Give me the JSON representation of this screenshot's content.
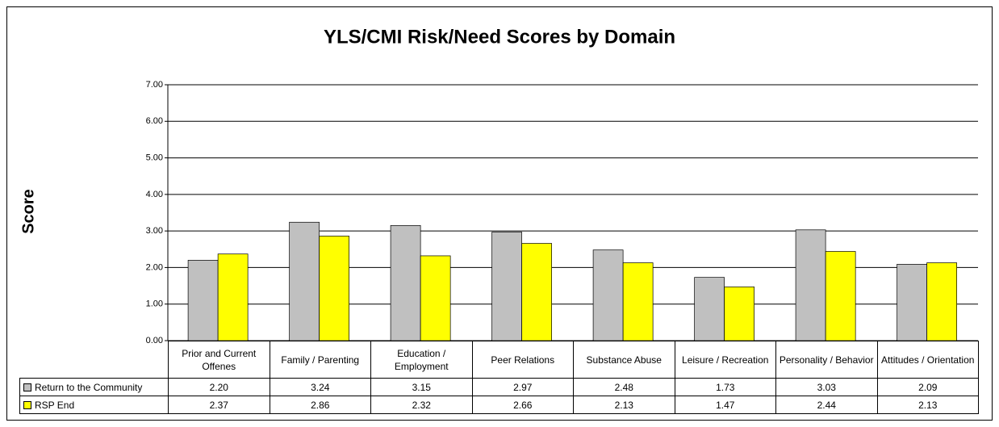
{
  "chart_data": {
    "type": "bar",
    "title": "YLS/CMI Risk/Need Scores by Domain",
    "y_label": "Score",
    "categories": [
      "Prior and Current Offenes",
      "Family / Parenting",
      "Education / Employment",
      "Peer Relations",
      "Substance Abuse",
      "Leisure / Recreation",
      "Personality / Behavior",
      "Attitudes / Orientation"
    ],
    "series": [
      {
        "name": "Return to the Community",
        "color": "#c0c0c0",
        "values": [
          2.2,
          3.24,
          3.15,
          2.97,
          2.48,
          1.73,
          3.03,
          2.09
        ],
        "value_labels": [
          "2.20",
          "3.24",
          "3.15",
          "2.97",
          "2.48",
          "1.73",
          "3.03",
          "2.09"
        ]
      },
      {
        "name": "RSP End",
        "color": "#ffff00",
        "values": [
          2.37,
          2.86,
          2.32,
          2.66,
          2.13,
          1.47,
          2.44,
          2.13
        ],
        "value_labels": [
          "2.37",
          "2.86",
          "2.32",
          "2.66",
          "2.13",
          "1.47",
          "2.44",
          "2.13"
        ]
      }
    ],
    "ylim": [
      0,
      7
    ],
    "yticks": [
      {
        "value": 0,
        "label": "0.00"
      },
      {
        "value": 1,
        "label": "1.00"
      },
      {
        "value": 2,
        "label": "2.00"
      },
      {
        "value": 3,
        "label": "3.00"
      },
      {
        "value": 4,
        "label": "4.00"
      },
      {
        "value": 5,
        "label": "5.00"
      },
      {
        "value": 6,
        "label": "6.00"
      },
      {
        "value": 7,
        "label": "7.00"
      }
    ],
    "grid": true
  }
}
